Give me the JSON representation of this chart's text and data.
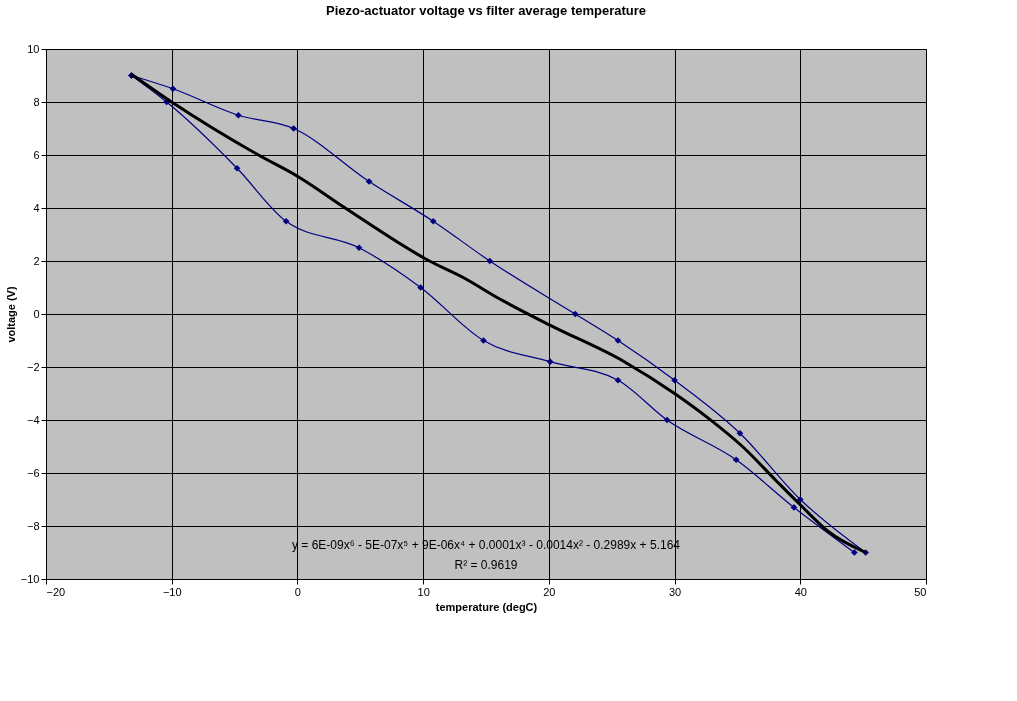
{
  "chart_data": {
    "type": "line",
    "title": "Piezo-actuator voltage vs filter average temperature",
    "xlabel": "temperature (degC)",
    "ylabel": "voltage (V)",
    "xlim": [
      -20,
      50
    ],
    "xticks": [
      -20,
      -10,
      0,
      10,
      20,
      30,
      40,
      50
    ],
    "ylim": [
      -10,
      10
    ],
    "yticks": [
      -10,
      -8,
      -6,
      -4,
      -2,
      0,
      2,
      4,
      6,
      8,
      10
    ],
    "grid": true,
    "marker": "diamond",
    "line_style": "solid",
    "series": [
      {
        "color": "#000080",
        "x": [
          -13.2,
          -9.9,
          -4.7,
          -0.3,
          5.7,
          10.8,
          15.3,
          22.1,
          25.5,
          30,
          35.2,
          40,
          45.2
        ],
        "values": [
          9.0,
          8.5,
          7.5,
          7.0,
          5.0,
          3.5,
          2.0,
          0.0,
          -1.0,
          -2.5,
          -4.5,
          -7.0,
          -9.0
        ]
      },
      {
        "color": "#000080",
        "x": [
          -13.2,
          -10.4,
          -4.8,
          -0.9,
          4.9,
          9.8,
          14.8,
          20.1,
          25.5,
          29.4,
          34.9,
          39.5,
          44.3
        ],
        "values": [
          9.0,
          8.0,
          5.5,
          3.5,
          2.5,
          1.0,
          -1.0,
          -1.8,
          -2.5,
          -4.0,
          -5.5,
          -7.3,
          -9.0
        ]
      },
      {
        "type": "line",
        "marker": "none",
        "color": "#000000",
        "x": [
          -13.2,
          -10,
          -3.1,
          0,
          3.8,
          10.5,
          13.3,
          15.6,
          20,
          26,
          30,
          32.6,
          35.4,
          38.1,
          40,
          42.2,
          45.2
        ],
        "values": [
          9.05,
          8.0,
          6.0,
          5.2,
          4.0,
          2.0,
          1.35,
          0.7,
          -0.4,
          -1.8,
          -3.0,
          -3.9,
          -5.0,
          -6.3,
          -7.2,
          -8.2,
          -9.0
        ]
      }
    ],
    "annotations": [
      "y = 6E-09x⁶ - 5E-07x⁵ + 9E-06x⁴ + 0.0001x³ - 0.0014x² - 0.2989x + 5.164",
      "R² = 0.9619"
    ]
  }
}
